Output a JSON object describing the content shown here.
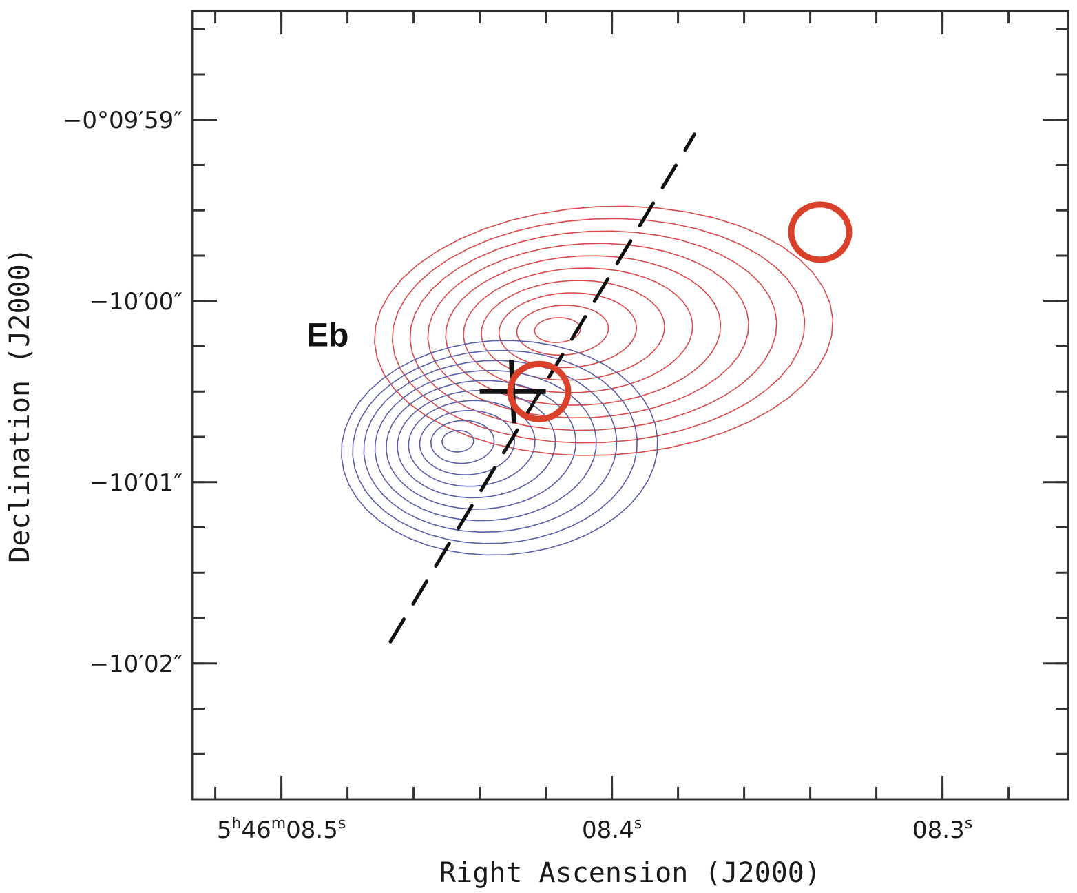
{
  "chart_data": {
    "type": "contour",
    "xlabel": "Right Ascension (J2000)",
    "ylabel": "Declination (J2000)",
    "x_units": "seconds of RA (5h46m + s)",
    "y_units": "arcsec offset from -0°10'00\"",
    "xlim": [
      8.527,
      8.262
    ],
    "ylim": [
      -2.75,
      1.6
    ],
    "x_ticks": [
      {
        "value": 8.5,
        "label_parts": [
          "5",
          "h",
          "46",
          "m",
          "08.5",
          "s"
        ]
      },
      {
        "value": 8.4,
        "label_parts": [
          "",
          "",
          "",
          "",
          "08.4",
          "s"
        ]
      },
      {
        "value": 8.3,
        "label_parts": [
          "",
          "",
          "",
          "",
          "08.3",
          "s"
        ]
      }
    ],
    "x_minor_step": 0.02,
    "y_ticks": [
      {
        "value": 1,
        "label": "−0°09′59″"
      },
      {
        "value": 0,
        "label": "−10′00″"
      },
      {
        "value": -1,
        "label": "−10′01″"
      },
      {
        "value": -2,
        "label": "−10′02″"
      }
    ],
    "y_minor_step": 0.25,
    "grid": false,
    "contour_sets": [
      {
        "name": "",
        "color": "#d94a4a",
        "levels": 10,
        "center_peak": [
          8.418,
          -0.16
        ],
        "outer_extent": {
          "x": [
            8.472,
            8.333
          ],
          "y": [
            0.52,
            -0.85
          ]
        }
      },
      {
        "name": "",
        "color": "#5a5fa8",
        "levels": 10,
        "center_peak": [
          8.448,
          -0.77
        ],
        "outer_extent": {
          "x": [
            8.482,
            8.386
          ],
          "y": [
            -0.22,
            -1.4
          ]
        }
      }
    ],
    "dashed_line": {
      "color": "#111111",
      "start": [
        8.467,
        -1.88
      ],
      "end": [
        8.375,
        0.92
      ]
    },
    "cross_marker": {
      "x": 8.43,
      "y": -0.5,
      "color": "#111111"
    },
    "circles": [
      {
        "x": 8.422,
        "y": -0.5,
        "color": "#d9412a"
      },
      {
        "x": 8.337,
        "y": 0.38,
        "color": "#d9412a"
      }
    ],
    "annotations": [
      {
        "text": "Eb",
        "x": 8.486,
        "y": -0.25
      }
    ]
  }
}
